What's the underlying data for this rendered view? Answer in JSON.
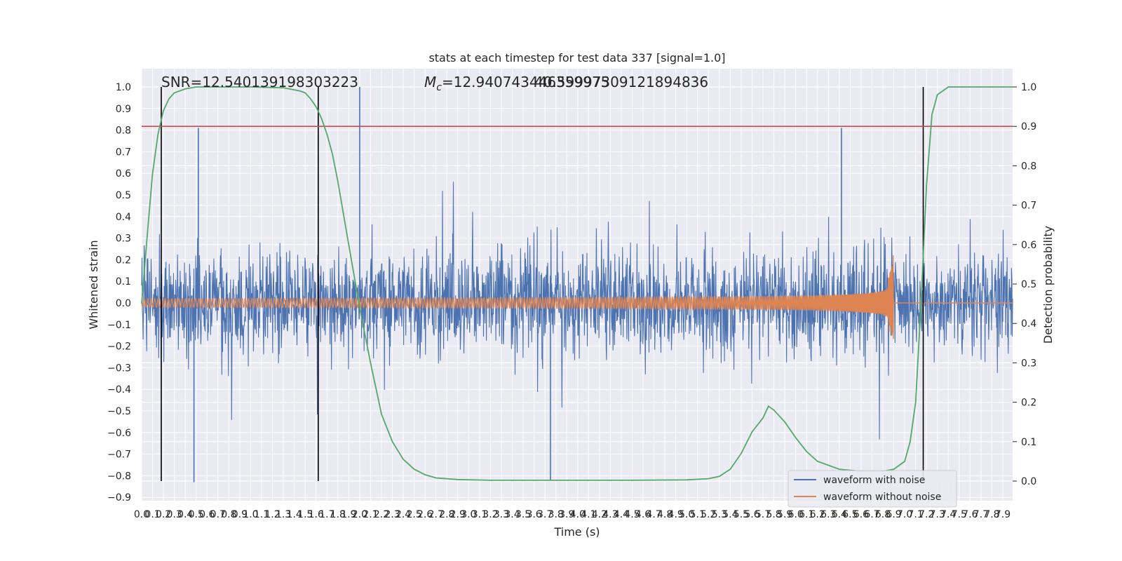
{
  "title": "stats at each timestep for test data 337 [signal=1.0]",
  "annotations": {
    "snr": "SNR=12.540139198303223",
    "mc_symbol": "M",
    "mc_sub": "c",
    "mc_value": "=12.940743446359975",
    "overlap": "40.59997309121894836"
  },
  "colors": {
    "noise": "#4c72b0",
    "clean": "#dd8452",
    "prob": "#55a868",
    "threshold": "#c44e52",
    "marker": "#000000",
    "bg": "#eaeaf2",
    "grid": "#ffffff"
  },
  "legend": {
    "items": [
      {
        "label": "waveform with noise",
        "color": "#4c72b0"
      },
      {
        "label": "waveform without noise",
        "color": "#dd8452"
      }
    ]
  },
  "chart_data": {
    "type": "line",
    "title": "stats at each timestep for test data 337 [signal=1.0]",
    "xlabel": "Time (s)",
    "ylabel": "Whitened strain",
    "y2label": "Detection probability",
    "xlim": [
      0,
      7.99
    ],
    "ylim": [
      -0.9,
      1.0
    ],
    "y2lim": [
      0.0,
      1.0
    ],
    "x_ticks": [
      "0.0",
      "0.1",
      "0.2",
      "0.3",
      "0.4",
      "0.5",
      "0.6",
      "0.7",
      "0.8",
      "0.9",
      "1.0",
      "1.1",
      "1.2",
      "1.3",
      "1.4",
      "1.5",
      "1.6",
      "1.7",
      "1.8",
      "1.9",
      "2.0",
      "2.1",
      "2.2",
      "2.3",
      "2.4",
      "2.5",
      "2.6",
      "2.7",
      "2.8",
      "2.9",
      "3.0",
      "3.1",
      "3.2",
      "3.3",
      "3.4",
      "3.5",
      "3.6",
      "3.7",
      "3.8",
      "3.9",
      "4.0",
      "4.1",
      "4.2",
      "4.3",
      "4.4",
      "4.5",
      "4.6",
      "4.7",
      "4.8",
      "4.9",
      "5.0",
      "5.1",
      "5.2",
      "5.3",
      "5.4",
      "5.5",
      "5.6",
      "5.7",
      "5.8",
      "5.9",
      "6.0",
      "6.1",
      "6.2",
      "6.3",
      "6.4",
      "6.5",
      "6.6",
      "6.7",
      "6.8",
      "6.9",
      "7.0",
      "7.1",
      "7.2",
      "7.3",
      "7.4",
      "7.5",
      "7.6",
      "7.7",
      "7.8",
      "7.9"
    ],
    "y_ticks": [
      "1.0",
      "0.9",
      "0.8",
      "0.7",
      "0.6",
      "0.5",
      "0.4",
      "0.3",
      "0.2",
      "0.1",
      "0.0",
      "−0.1",
      "−0.2",
      "−0.3",
      "−0.4",
      "−0.5",
      "−0.6",
      "−0.7",
      "−0.8",
      "−0.9"
    ],
    "y2_ticks": [
      "1.0",
      "0.9",
      "0.8",
      "0.7",
      "0.6",
      "0.5",
      "0.4",
      "0.3",
      "0.2",
      "0.1",
      "0.0"
    ],
    "threshold_y2": 0.9,
    "vertical_markers": [
      0.18,
      1.62,
      7.17
    ],
    "series": [
      {
        "name": "waveform with noise",
        "noise_envelope": {
          "typical_min": -0.5,
          "typical_max": 0.55,
          "extreme_min": -0.83,
          "extreme_max": 1.0
        },
        "spikes": [
          {
            "x": 0.52,
            "y": 0.81
          },
          {
            "x": 2.0,
            "y": 1.0
          },
          {
            "x": 6.42,
            "y": 0.81
          },
          {
            "x": 0.48,
            "y": -0.83
          },
          {
            "x": 3.75,
            "y": -0.82
          }
        ]
      },
      {
        "name": "waveform without noise",
        "chirp": {
          "start_amplitude": 0.02,
          "peak_amplitude": 0.4,
          "merger_time": 6.9,
          "end_time": 7.99
        }
      },
      {
        "name": "detection probability",
        "axis": "y2",
        "x": [
          0.0,
          0.05,
          0.1,
          0.15,
          0.2,
          0.25,
          0.3,
          0.4,
          0.5,
          0.8,
          1.0,
          1.3,
          1.45,
          1.5,
          1.55,
          1.6,
          1.65,
          1.7,
          1.75,
          1.8,
          1.9,
          2.0,
          2.1,
          2.2,
          2.3,
          2.4,
          2.5,
          2.6,
          2.7,
          2.9,
          3.2,
          3.6,
          4.0,
          4.5,
          5.0,
          5.2,
          5.3,
          5.4,
          5.5,
          5.6,
          5.7,
          5.75,
          5.8,
          5.9,
          6.0,
          6.1,
          6.2,
          6.4,
          6.6,
          6.8,
          6.9,
          7.0,
          7.05,
          7.1,
          7.15,
          7.2,
          7.25,
          7.3,
          7.4,
          7.6,
          7.8,
          7.99
        ],
        "y": [
          0.45,
          0.62,
          0.78,
          0.88,
          0.94,
          0.97,
          0.985,
          0.995,
          1.0,
          1.0,
          1.0,
          0.998,
          0.99,
          0.985,
          0.97,
          0.95,
          0.92,
          0.88,
          0.83,
          0.76,
          0.6,
          0.44,
          0.3,
          0.17,
          0.1,
          0.055,
          0.03,
          0.016,
          0.008,
          0.004,
          0.002,
          0.002,
          0.002,
          0.002,
          0.003,
          0.006,
          0.012,
          0.03,
          0.07,
          0.125,
          0.16,
          0.19,
          0.18,
          0.15,
          0.11,
          0.075,
          0.05,
          0.03,
          0.025,
          0.025,
          0.03,
          0.05,
          0.1,
          0.2,
          0.45,
          0.75,
          0.93,
          0.98,
          1.0,
          1.0,
          1.0,
          1.0
        ]
      }
    ],
    "legend_position": "lower-right"
  }
}
